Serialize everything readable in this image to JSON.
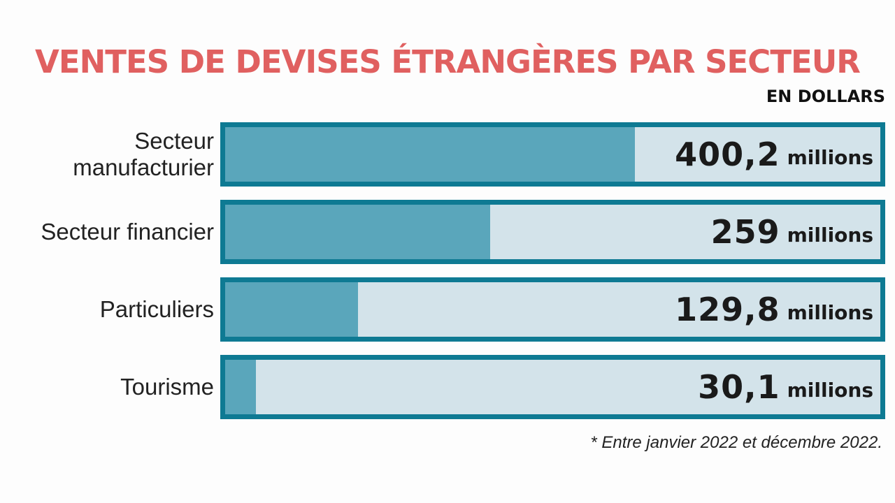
{
  "chart_data": {
    "type": "bar",
    "orientation": "horizontal",
    "title": "VENTES DE DEVISES ÉTRANGÈRES PAR SECTEUR",
    "subtitle": "EN DOLLARS",
    "categories": [
      "Secteur manufacturier",
      "Secteur financier",
      "Particuliers",
      "Tourisme"
    ],
    "values": [
      400.2,
      259,
      129.8,
      30.1
    ],
    "value_labels": [
      "400,2",
      "259",
      "129,8",
      "30,1"
    ],
    "value_unit": "millions",
    "xlim": [
      0,
      640
    ],
    "color": "#5aa6bb",
    "track_color": "#d3e3ea",
    "frame_color": "#0e7a93",
    "note": "* Entre janvier 2022 et décembre 2022."
  }
}
